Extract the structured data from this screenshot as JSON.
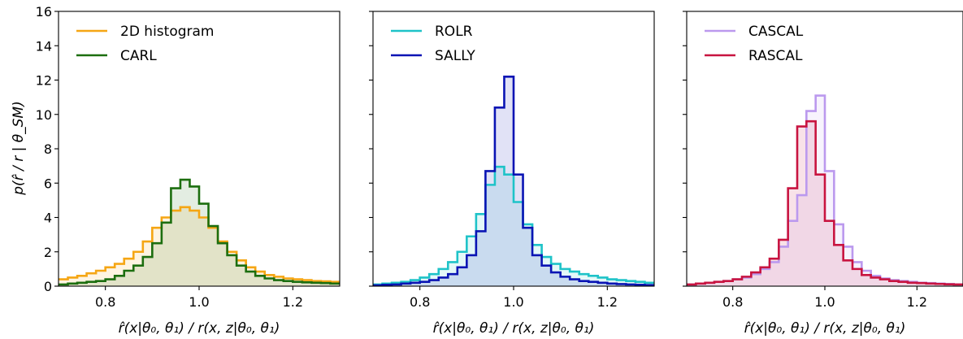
{
  "figure": {
    "ylabel": "p(r̂ / r | θ_SM)",
    "xlabel": "r̂(x|θ₀, θ₁) / r(x, z|θ₀, θ₁)"
  },
  "chart_data": [
    {
      "type": "histogram",
      "xlim": [
        0.7,
        1.3
      ],
      "ylim": [
        0,
        16
      ],
      "x_ticks": [
        0.8,
        1.0,
        1.2
      ],
      "y_ticks": [
        0,
        2,
        4,
        6,
        8,
        10,
        12,
        14,
        16
      ],
      "xlabel": "r̂(x|θ₀, θ₁) / r(x, z|θ₀, θ₁)",
      "ylabel": "p(r̂ / r | θ_SM)",
      "legend_position": "top-left",
      "bin_edges": [
        0.7,
        0.72,
        0.74,
        0.76,
        0.78,
        0.8,
        0.82,
        0.84,
        0.86,
        0.88,
        0.9,
        0.92,
        0.94,
        0.96,
        0.98,
        1.0,
        1.02,
        1.04,
        1.06,
        1.08,
        1.1,
        1.12,
        1.14,
        1.16,
        1.18,
        1.2,
        1.22,
        1.24,
        1.26,
        1.28,
        1.3
      ],
      "series": [
        {
          "name": "2D histogram",
          "color": "#f5a614",
          "values": [
            0.4,
            0.5,
            0.6,
            0.75,
            0.9,
            1.1,
            1.3,
            1.6,
            2.0,
            2.6,
            3.4,
            4.0,
            4.4,
            4.6,
            4.4,
            4.0,
            3.4,
            2.6,
            2.0,
            1.5,
            1.1,
            0.85,
            0.65,
            0.55,
            0.45,
            0.4,
            0.35,
            0.3,
            0.28,
            0.25
          ]
        },
        {
          "name": "CARL",
          "color": "#1c6e0f",
          "values": [
            0.1,
            0.15,
            0.2,
            0.25,
            0.3,
            0.4,
            0.6,
            0.9,
            1.2,
            1.7,
            2.5,
            3.7,
            5.7,
            6.2,
            5.8,
            4.8,
            3.5,
            2.5,
            1.8,
            1.2,
            0.85,
            0.6,
            0.45,
            0.35,
            0.3,
            0.25,
            0.22,
            0.2,
            0.18,
            0.15
          ]
        }
      ]
    },
    {
      "type": "histogram",
      "xlim": [
        0.7,
        1.3
      ],
      "ylim": [
        0,
        16
      ],
      "x_ticks": [
        0.8,
        1.0,
        1.2
      ],
      "xlabel": "r̂(x|θ₀, θ₁) / r(x, z|θ₀, θ₁)",
      "legend_position": "top-left",
      "bin_edges": [
        0.7,
        0.72,
        0.74,
        0.76,
        0.78,
        0.8,
        0.82,
        0.84,
        0.86,
        0.88,
        0.9,
        0.92,
        0.94,
        0.96,
        0.98,
        1.0,
        1.02,
        1.04,
        1.06,
        1.08,
        1.1,
        1.12,
        1.14,
        1.16,
        1.18,
        1.2,
        1.22,
        1.24,
        1.26,
        1.28,
        1.3
      ],
      "series": [
        {
          "name": "ROLR",
          "color": "#1ec3c8",
          "values": [
            0.1,
            0.15,
            0.2,
            0.25,
            0.35,
            0.5,
            0.7,
            1.0,
            1.4,
            2.0,
            2.9,
            4.2,
            5.9,
            6.95,
            6.5,
            4.9,
            3.6,
            2.4,
            1.7,
            1.3,
            1.0,
            0.85,
            0.7,
            0.6,
            0.5,
            0.4,
            0.35,
            0.3,
            0.25,
            0.2
          ]
        },
        {
          "name": "SALLY",
          "color": "#0a14b4",
          "values": [
            0.05,
            0.08,
            0.1,
            0.15,
            0.2,
            0.25,
            0.35,
            0.5,
            0.7,
            1.1,
            1.8,
            3.2,
            6.7,
            10.4,
            12.2,
            6.5,
            3.4,
            1.8,
            1.2,
            0.8,
            0.55,
            0.4,
            0.3,
            0.25,
            0.2,
            0.15,
            0.12,
            0.1,
            0.08,
            0.06
          ]
        }
      ]
    },
    {
      "type": "histogram",
      "xlim": [
        0.7,
        1.3
      ],
      "ylim": [
        0,
        16
      ],
      "x_ticks": [
        0.8,
        1.0,
        1.2
      ],
      "xlabel": "r̂(x|θ₀, θ₁) / r(x, z|θ₀, θ₁)",
      "legend_position": "top-left",
      "bin_edges": [
        0.7,
        0.72,
        0.74,
        0.76,
        0.78,
        0.8,
        0.82,
        0.84,
        0.86,
        0.88,
        0.9,
        0.92,
        0.94,
        0.96,
        0.98,
        1.0,
        1.02,
        1.04,
        1.06,
        1.08,
        1.1,
        1.12,
        1.14,
        1.16,
        1.18,
        1.2,
        1.22,
        1.24,
        1.26,
        1.28,
        1.3
      ],
      "series": [
        {
          "name": "CASCAL",
          "color": "#bb99ee",
          "values": [
            0.1,
            0.15,
            0.2,
            0.25,
            0.3,
            0.4,
            0.5,
            0.7,
            1.0,
            1.4,
            2.3,
            3.8,
            5.3,
            10.2,
            11.1,
            6.7,
            3.6,
            2.3,
            1.4,
            0.9,
            0.6,
            0.45,
            0.35,
            0.3,
            0.25,
            0.2,
            0.18,
            0.15,
            0.13,
            0.1
          ]
        },
        {
          "name": "RASCAL",
          "color": "#c81440",
          "values": [
            0.1,
            0.15,
            0.2,
            0.25,
            0.3,
            0.4,
            0.55,
            0.8,
            1.1,
            1.6,
            2.7,
            5.7,
            9.3,
            9.6,
            6.5,
            3.8,
            2.4,
            1.5,
            1.0,
            0.65,
            0.5,
            0.4,
            0.3,
            0.25,
            0.2,
            0.18,
            0.15,
            0.13,
            0.11,
            0.1
          ]
        }
      ]
    }
  ]
}
